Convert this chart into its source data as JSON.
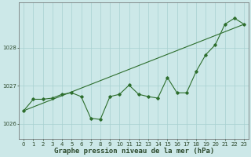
{
  "xlabel": "Graphe pression niveau de la mer (hPa)",
  "background_color": "#cce8e8",
  "plot_bg_color": "#cce8e8",
  "grid_color": "#a8d0d0",
  "line_color": "#2d6e2d",
  "hours": [
    0,
    1,
    2,
    3,
    4,
    5,
    6,
    7,
    8,
    9,
    10,
    11,
    12,
    13,
    14,
    15,
    16,
    17,
    18,
    19,
    20,
    21,
    22,
    23
  ],
  "pressure": [
    1026.35,
    1026.65,
    1026.65,
    1026.68,
    1026.78,
    1026.82,
    1026.72,
    1026.15,
    1026.12,
    1026.72,
    1026.78,
    1027.02,
    1026.78,
    1026.72,
    1026.68,
    1027.22,
    1026.82,
    1026.82,
    1027.38,
    1027.82,
    1028.08,
    1028.62,
    1028.78,
    1028.62
  ],
  "trend_line": [
    1026.35,
    1028.62
  ],
  "trend_hours": [
    0,
    23
  ],
  "ylim_min": 1025.6,
  "ylim_max": 1029.2,
  "yticks": [
    1026,
    1027,
    1028
  ],
  "xticks": [
    0,
    1,
    2,
    3,
    4,
    5,
    6,
    7,
    8,
    9,
    10,
    11,
    12,
    13,
    14,
    15,
    16,
    17,
    18,
    19,
    20,
    21,
    22,
    23
  ],
  "tick_fontsize": 5.0,
  "xlabel_fontsize": 6.5,
  "marker": "D",
  "marker_size": 1.8,
  "line_width": 0.8
}
